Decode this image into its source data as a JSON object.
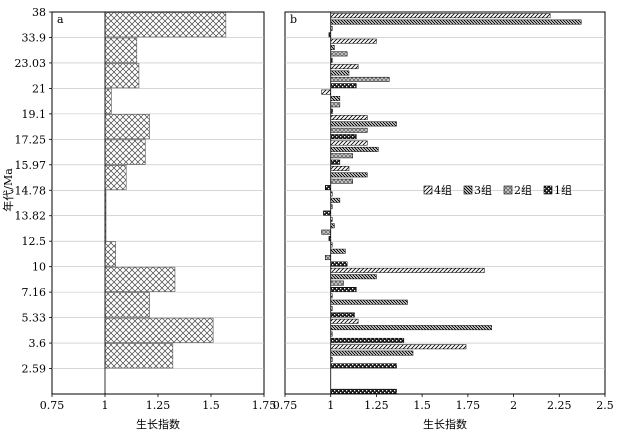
{
  "chart_data": [
    {
      "panel": "a",
      "type": "bar",
      "orientation": "horizontal",
      "baseline": 1,
      "categories": [
        "38",
        "33.9",
        "23.03",
        "21",
        "19.1",
        "17.25",
        "15.97",
        "14.78",
        "13.82",
        "12.5",
        "10",
        "7.16",
        "5.33",
        "3.6",
        "2.59"
      ],
      "values": [
        1.57,
        1.15,
        1.16,
        1.03,
        1.21,
        1.19,
        1.1,
        1.0,
        1.0,
        1.05,
        1.33,
        1.21,
        1.51,
        1.32,
        null
      ],
      "xlim": [
        0.75,
        1.75
      ],
      "xticks": [
        "0.75",
        "1",
        "1.25",
        "1.5",
        "1.75"
      ],
      "xlabel": "生长指数",
      "ylabel": "年代/Ma"
    },
    {
      "panel": "b",
      "type": "bar",
      "orientation": "horizontal",
      "baseline": 1,
      "categories": [
        "38",
        "33.9",
        "23.03",
        "21",
        "19.1",
        "17.25",
        "15.97",
        "14.78",
        "13.82",
        "12.5",
        "10",
        "7.16",
        "5.33",
        "3.6",
        "2.59"
      ],
      "series": [
        {
          "name": "4组",
          "values": [
            2.2,
            1.25,
            1.15,
            0.95,
            1.2,
            1.2,
            1.1,
            1.0,
            1.0,
            1.0,
            1.84,
            1.0,
            1.15,
            1.74,
            null
          ]
        },
        {
          "name": "3组",
          "values": [
            2.37,
            1.02,
            1.1,
            1.05,
            1.36,
            1.26,
            1.2,
            1.05,
            1.02,
            1.08,
            1.25,
            1.42,
            1.88,
            1.45,
            null
          ]
        },
        {
          "name": "2组",
          "values": [
            1.0,
            1.09,
            1.32,
            1.05,
            1.2,
            1.12,
            1.12,
            1.0,
            0.95,
            0.97,
            1.07,
            1.0,
            1.0,
            1.0,
            null
          ]
        },
        {
          "name": "1组",
          "values": [
            0.99,
            1.0,
            1.14,
            1.01,
            1.14,
            1.05,
            0.97,
            0.96,
            0.99,
            1.09,
            1.14,
            1.13,
            1.4,
            1.36,
            1.36
          ]
        }
      ],
      "xlim": [
        0.75,
        2.5
      ],
      "xticks": [
        "0.75",
        "1",
        "1.25",
        "1.5",
        "1.75",
        "2",
        "2.25",
        "2.5"
      ],
      "xlabel": "生长指数",
      "legend_position": "right-middle"
    }
  ]
}
